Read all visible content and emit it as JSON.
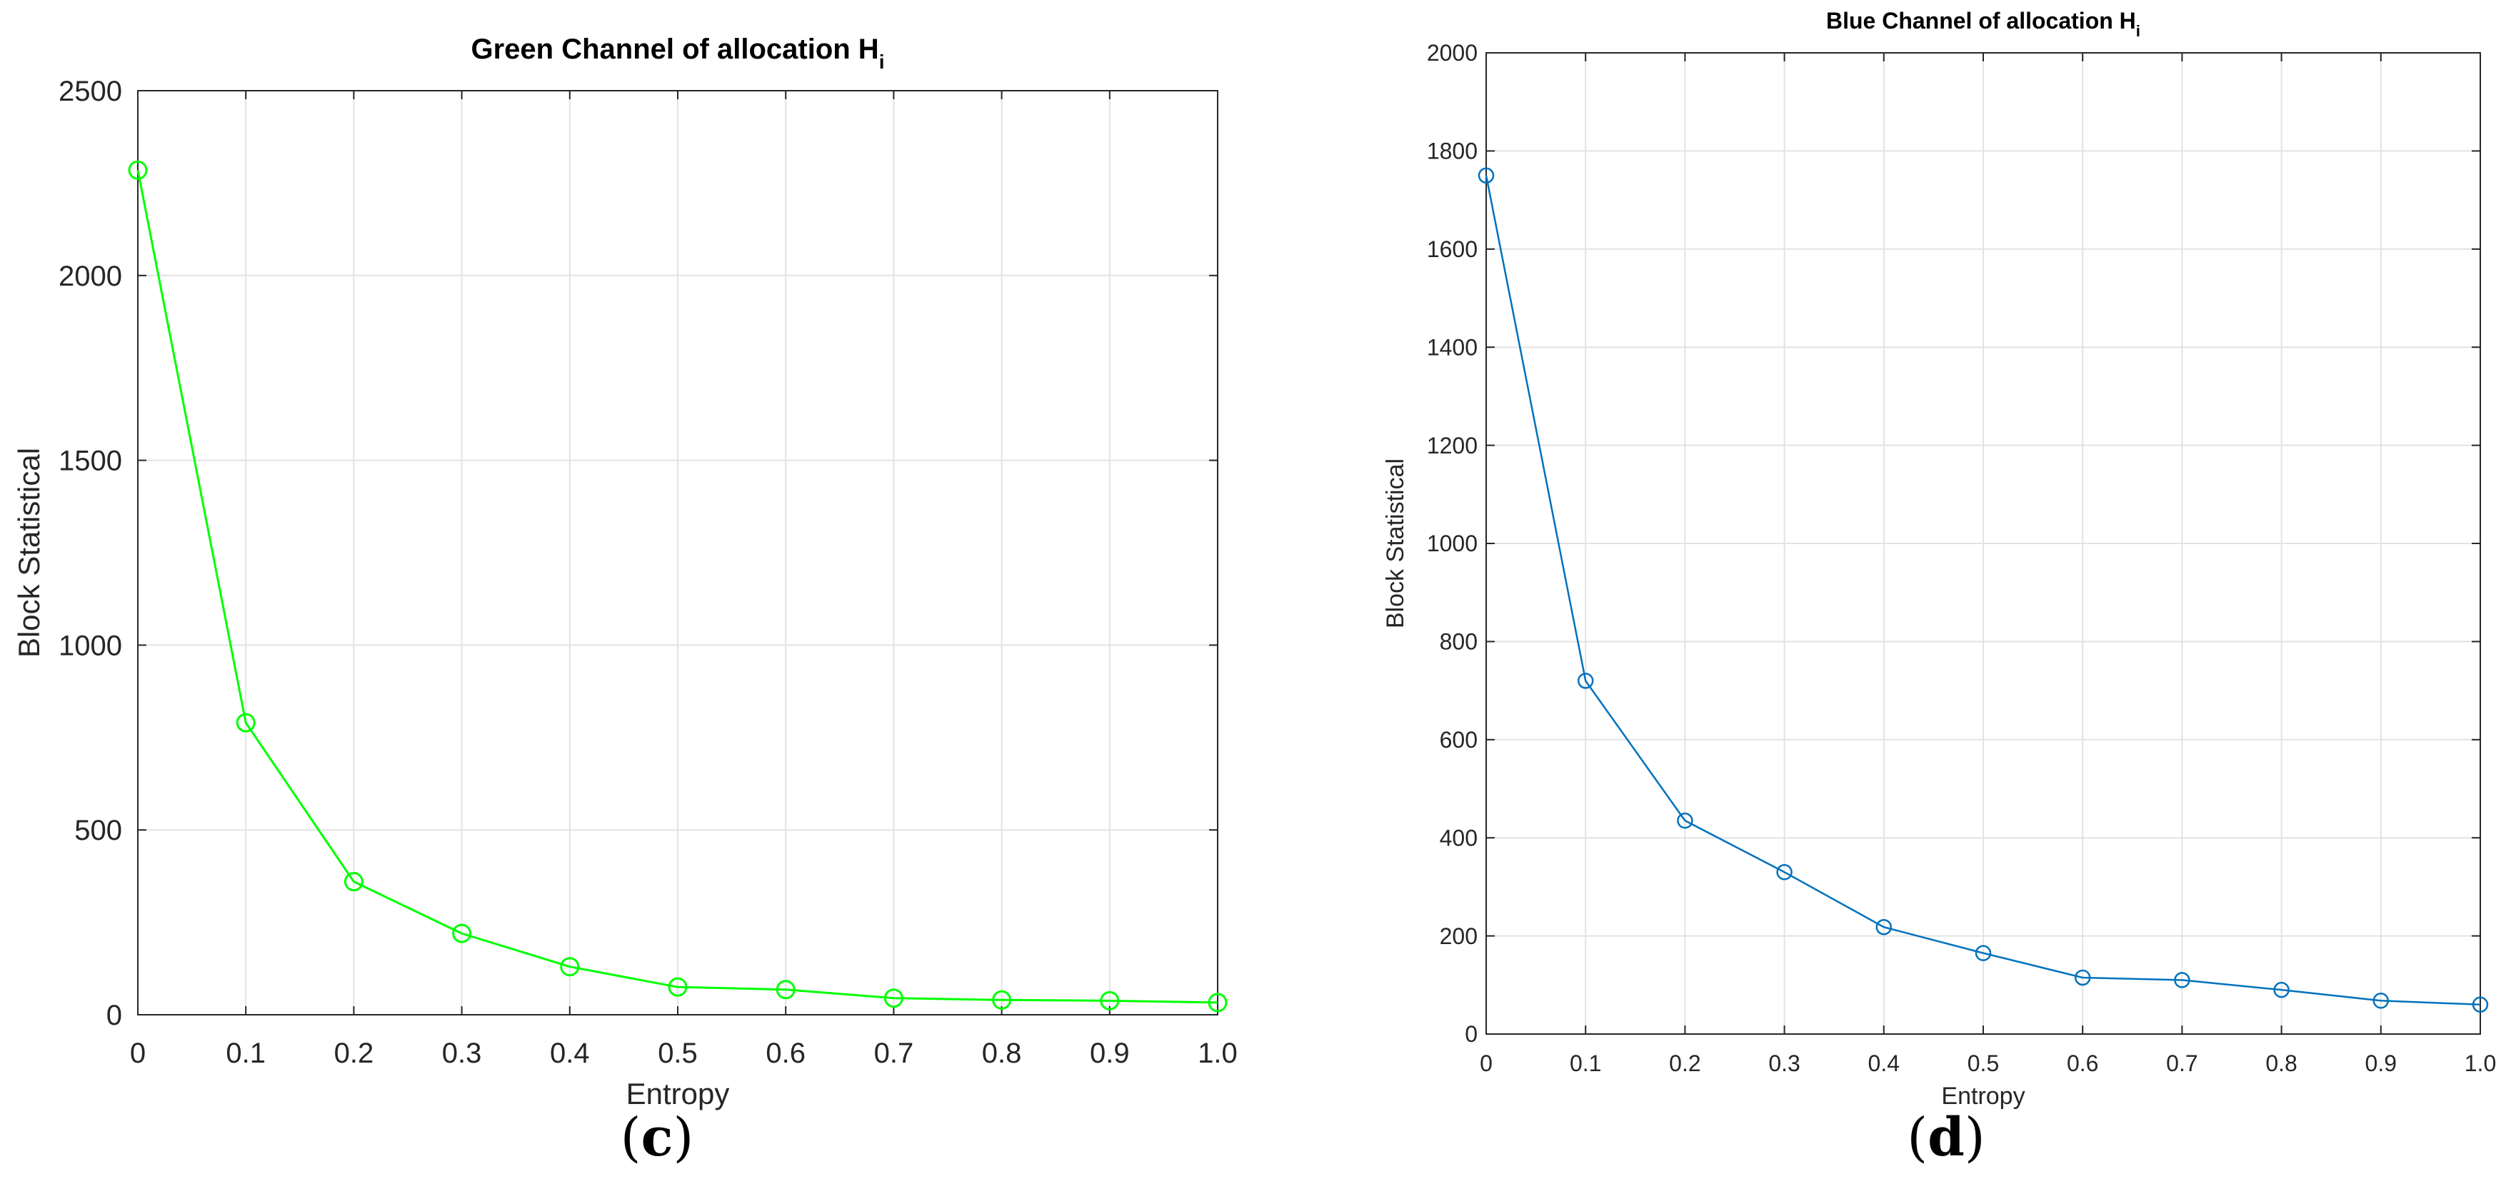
{
  "chart_data": [
    {
      "type": "line",
      "panel_label": "c",
      "title": "Green Channel of allocation H",
      "title_subscript": "i",
      "xlabel": "Entropy",
      "ylabel": "Block Statistical",
      "x": [
        0,
        0.1,
        0.2,
        0.3,
        0.4,
        0.5,
        0.6,
        0.7,
        0.8,
        0.9,
        1.0
      ],
      "xticks": [
        "0",
        "0.1",
        "0.2",
        "0.3",
        "0.4",
        "0.5",
        "0.6",
        "0.7",
        "0.8",
        "0.9",
        "1.0"
      ],
      "yticks": [
        "0",
        "500",
        "1000",
        "1500",
        "2000",
        "2500"
      ],
      "xlim": [
        0,
        1
      ],
      "ylim": [
        0,
        2500
      ],
      "grid": true,
      "series": [
        {
          "values": [
            2285,
            790,
            360,
            220,
            130,
            75,
            68,
            45,
            40,
            38,
            33
          ],
          "color": "#00ff00",
          "marker": "circle"
        }
      ]
    },
    {
      "type": "line",
      "panel_label": "d",
      "title": "Blue Channel of allocation H",
      "title_subscript": "i",
      "xlabel": "Entropy",
      "ylabel": "Block Statistical",
      "x": [
        0,
        0.1,
        0.2,
        0.3,
        0.4,
        0.5,
        0.6,
        0.7,
        0.8,
        0.9,
        1.0
      ],
      "xticks": [
        "0",
        "0.1",
        "0.2",
        "0.3",
        "0.4",
        "0.5",
        "0.6",
        "0.7",
        "0.8",
        "0.9",
        "1.0"
      ],
      "yticks": [
        "0",
        "200",
        "400",
        "600",
        "800",
        "1000",
        "1200",
        "1400",
        "1600",
        "1800",
        "2000"
      ],
      "xlim": [
        0,
        1
      ],
      "ylim": [
        0,
        2000
      ],
      "grid": true,
      "series": [
        {
          "values": [
            1750,
            720,
            435,
            330,
            218,
            165,
            115,
            110,
            90,
            68,
            60
          ],
          "color": "#0072bd",
          "marker": "circle"
        }
      ]
    }
  ]
}
